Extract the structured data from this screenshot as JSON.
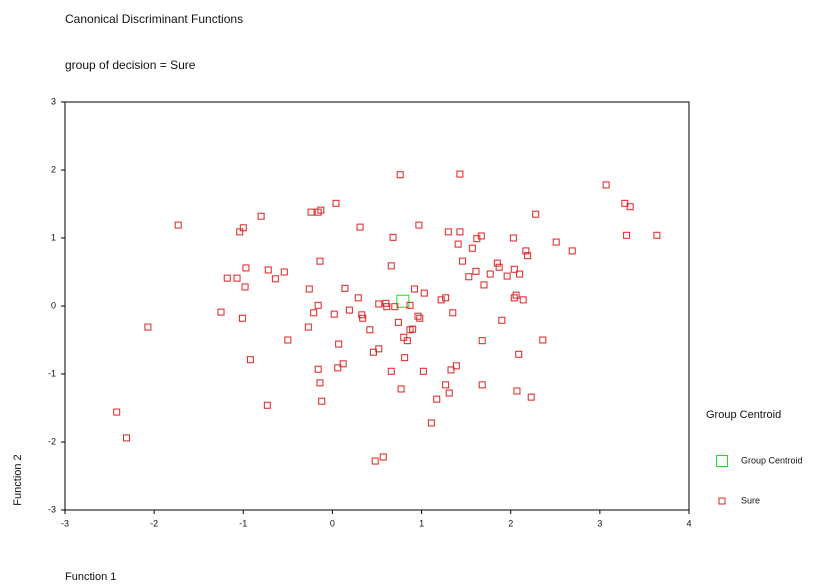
{
  "chart_data": {
    "type": "scatter",
    "title": "Canonical Discriminant Functions",
    "subtitle": "group of decision = Sure",
    "x_label": "Function 1",
    "y_label": "Function 2",
    "legend_title": "Group Centroid",
    "legend_position": "right",
    "xlim": [
      -3,
      4
    ],
    "xticks": [
      -3,
      -2,
      -1,
      0,
      1,
      2,
      3,
      4
    ],
    "ylim": [
      -3,
      3
    ],
    "yticks": [
      -3,
      -2,
      -1,
      0,
      1,
      2,
      3
    ],
    "grid": false,
    "series": [
      {
        "name": "Group Centroid",
        "color": "#22dd22",
        "marker": "square-large",
        "x": [
          0.79
        ],
        "values": [
          0.07
        ]
      },
      {
        "name": "Sure",
        "color": "#e02020",
        "marker": "square",
        "x": [
          -2.42,
          -2.31,
          -2.07,
          -1.73,
          -1.25,
          -1.18,
          -1.07,
          -1.04,
          -1.0,
          -1.01,
          -0.97,
          -0.98,
          -0.92,
          -0.8,
          -0.72,
          -0.64,
          -0.54,
          -0.5,
          -0.73,
          -0.26,
          -0.27,
          -0.21,
          -0.24,
          -0.16,
          -0.13,
          -0.16,
          -0.14,
          -0.16,
          -0.14,
          -0.12,
          0.04,
          0.02,
          0.07,
          0.06,
          0.12,
          0.14,
          0.19,
          0.29,
          0.31,
          0.33,
          0.34,
          0.42,
          0.46,
          0.52,
          0.48,
          0.57,
          0.52,
          0.6,
          0.61,
          0.66,
          0.66,
          0.68,
          0.7,
          0.76,
          0.74,
          0.77,
          0.81,
          0.84,
          0.8,
          0.87,
          0.9,
          0.87,
          0.92,
          0.96,
          0.98,
          0.97,
          1.02,
          1.03,
          1.11,
          1.17,
          1.22,
          1.3,
          1.27,
          1.27,
          1.31,
          1.33,
          1.35,
          1.39,
          1.41,
          1.43,
          1.43,
          1.46,
          1.53,
          1.57,
          1.61,
          1.62,
          1.67,
          1.68,
          1.7,
          1.77,
          1.85,
          1.87,
          1.9,
          1.96,
          2.03,
          2.04,
          2.04,
          2.06,
          2.09,
          2.1,
          2.14,
          2.17,
          2.19,
          2.23,
          2.28,
          2.36,
          2.51,
          2.69,
          3.07,
          3.28,
          3.34,
          3.3,
          3.64,
          1.68,
          2.07
        ],
        "values": [
          -1.56,
          -1.94,
          -0.31,
          1.19,
          -0.09,
          0.41,
          0.41,
          1.09,
          1.15,
          -0.18,
          0.56,
          0.28,
          -0.79,
          1.32,
          0.53,
          0.4,
          0.5,
          -0.5,
          -1.46,
          0.25,
          -0.31,
          -0.1,
          1.38,
          1.38,
          1.41,
          0.01,
          0.66,
          -0.93,
          -1.13,
          -1.4,
          1.51,
          -0.12,
          -0.56,
          -0.91,
          -0.85,
          0.26,
          -0.06,
          0.12,
          1.16,
          -0.13,
          -0.18,
          -0.35,
          -0.68,
          -0.63,
          -2.28,
          -2.22,
          0.03,
          0.04,
          -0.01,
          -0.96,
          0.59,
          1.01,
          -0.01,
          1.93,
          -0.24,
          -1.22,
          -0.76,
          -0.51,
          -0.46,
          -0.35,
          -0.34,
          0.01,
          0.25,
          -0.15,
          -0.18,
          1.19,
          -0.96,
          0.19,
          -1.72,
          -1.37,
          0.09,
          1.09,
          0.12,
          -1.16,
          -1.28,
          -0.94,
          -0.1,
          -0.88,
          0.91,
          1.94,
          1.09,
          0.66,
          0.43,
          0.85,
          0.51,
          0.99,
          1.03,
          -0.51,
          0.31,
          0.47,
          0.63,
          0.57,
          -0.21,
          0.44,
          1.0,
          0.54,
          0.12,
          0.16,
          -0.71,
          0.47,
          0.09,
          0.81,
          0.74,
          -1.34,
          1.35,
          -0.5,
          0.94,
          0.81,
          1.78,
          1.51,
          1.46,
          1.04,
          1.04,
          -1.16,
          -1.25
        ]
      }
    ]
  }
}
